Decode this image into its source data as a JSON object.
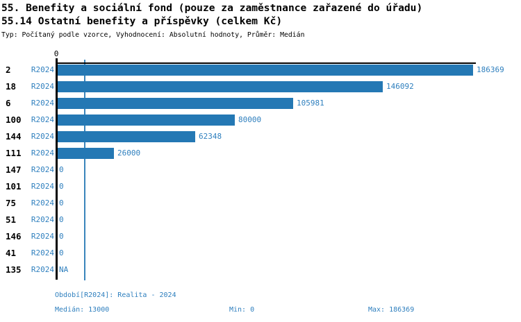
{
  "header": {
    "title_line1": "55. Benefity a sociální fond (pouze za zaměstnance zařazené do úřadu)",
    "title_line2": "55.14 Ostatní benefity a příspěvky (celkem Kč)",
    "subtitle": "Typ: Počítaný podle vzorce, Vyhodnocení: Absolutní hodnoty, Průměr: Medián"
  },
  "chart_data": {
    "type": "bar",
    "orientation": "horizontal",
    "x_tick_label": "0",
    "xlim": [
      0,
      186369
    ],
    "period_label": "R2024",
    "categories": [
      "2",
      "18",
      "6",
      "100",
      "144",
      "111",
      "147",
      "101",
      "75",
      "51",
      "146",
      "41",
      "135"
    ],
    "values": [
      186369,
      146092,
      105981,
      80000,
      62348,
      26000,
      0,
      0,
      0,
      0,
      0,
      0,
      null
    ],
    "value_labels": [
      "186369",
      "146092",
      "105981",
      "80000",
      "62348",
      "26000",
      "0",
      "0",
      "0",
      "0",
      "0",
      "0",
      "NA"
    ],
    "median": 13000,
    "min": 0,
    "max": 186369,
    "bar_color": "#2478b4",
    "label_color": "#2e7fbe",
    "axis_color": "#000000",
    "grid": "median-line-only",
    "legend_position": "none"
  },
  "footer": {
    "period": "Období[R2024]: Realita - 2024",
    "median": "Medián: 13000",
    "min": "Min: 0",
    "max": "Max: 186369"
  }
}
